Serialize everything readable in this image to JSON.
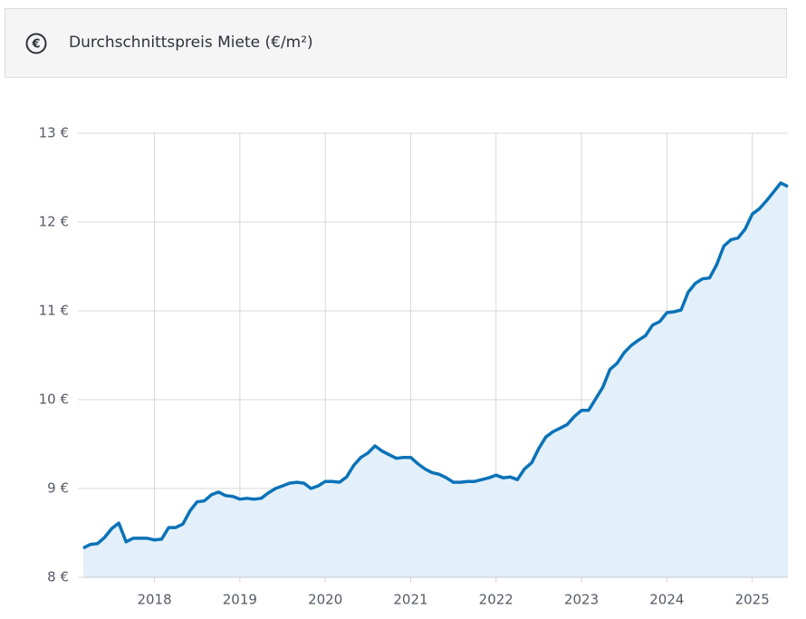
{
  "chart_data": {
    "type": "area",
    "title": "Durchschnittspreis Miete (€/m²)",
    "x": [
      2017.167,
      2017.25,
      2017.333,
      2017.417,
      2017.5,
      2017.583,
      2017.667,
      2017.75,
      2017.833,
      2017.917,
      2018,
      2018.083,
      2018.167,
      2018.25,
      2018.333,
      2018.417,
      2018.5,
      2018.583,
      2018.667,
      2018.75,
      2018.833,
      2018.917,
      2019,
      2019.083,
      2019.167,
      2019.25,
      2019.333,
      2019.417,
      2019.5,
      2019.583,
      2019.667,
      2019.75,
      2019.833,
      2019.917,
      2020,
      2020.083,
      2020.167,
      2020.25,
      2020.333,
      2020.417,
      2020.5,
      2020.583,
      2020.667,
      2020.75,
      2020.833,
      2020.917,
      2021,
      2021.083,
      2021.167,
      2021.25,
      2021.333,
      2021.417,
      2021.5,
      2021.583,
      2021.667,
      2021.75,
      2021.833,
      2021.917,
      2022,
      2022.083,
      2022.167,
      2022.25,
      2022.333,
      2022.417,
      2022.5,
      2022.583,
      2022.667,
      2022.75,
      2022.833,
      2022.917,
      2023,
      2023.083,
      2023.167,
      2023.25,
      2023.333,
      2023.417,
      2023.5,
      2023.583,
      2023.667,
      2023.75,
      2023.833,
      2023.917,
      2024,
      2024.083,
      2024.167,
      2024.25,
      2024.333,
      2024.417,
      2024.5,
      2024.583,
      2024.667,
      2024.75,
      2024.833,
      2024.917,
      2025,
      2025.083,
      2025.167,
      2025.25,
      2025.333,
      2025.417
    ],
    "values": [
      8.33,
      8.37,
      8.38,
      8.45,
      8.55,
      8.61,
      8.4,
      8.44,
      8.44,
      8.44,
      8.42,
      8.43,
      8.56,
      8.56,
      8.6,
      8.75,
      8.85,
      8.86,
      8.93,
      8.96,
      8.92,
      8.91,
      8.88,
      8.89,
      8.88,
      8.89,
      8.95,
      9.0,
      9.03,
      9.06,
      9.07,
      9.06,
      9.0,
      9.03,
      9.08,
      9.08,
      9.07,
      9.13,
      9.26,
      9.35,
      9.4,
      9.48,
      9.42,
      9.38,
      9.34,
      9.35,
      9.35,
      9.28,
      9.22,
      9.18,
      9.16,
      9.12,
      9.07,
      9.07,
      9.08,
      9.08,
      9.1,
      9.12,
      9.15,
      9.12,
      9.13,
      9.1,
      9.22,
      9.29,
      9.45,
      9.58,
      9.64,
      9.68,
      9.72,
      9.81,
      9.88,
      9.88,
      10.01,
      10.14,
      10.34,
      10.41,
      10.53,
      10.61,
      10.67,
      10.72,
      10.84,
      10.88,
      10.98,
      10.99,
      11.01,
      11.21,
      11.31,
      11.36,
      11.37,
      11.52,
      11.73,
      11.8,
      11.82,
      11.92,
      12.09,
      12.15,
      12.24,
      12.34,
      12.44,
      12.4
    ],
    "color": "#0a72b8",
    "fill": "#e3f0f9",
    "xlim": [
      2017.167,
      2025.417
    ],
    "xticks": [
      2018,
      2019,
      2020,
      2021,
      2022,
      2023,
      2024,
      2025
    ],
    "ylim": [
      8,
      13
    ],
    "yticks": [
      {
        "value": 8,
        "label": "8 €"
      },
      {
        "value": 9,
        "label": "9 €"
      },
      {
        "value": 10,
        "label": "10 €"
      },
      {
        "value": 11,
        "label": "11 €"
      },
      {
        "value": 12,
        "label": "12 €"
      },
      {
        "value": 13,
        "label": "13 €"
      }
    ],
    "grid": true
  }
}
